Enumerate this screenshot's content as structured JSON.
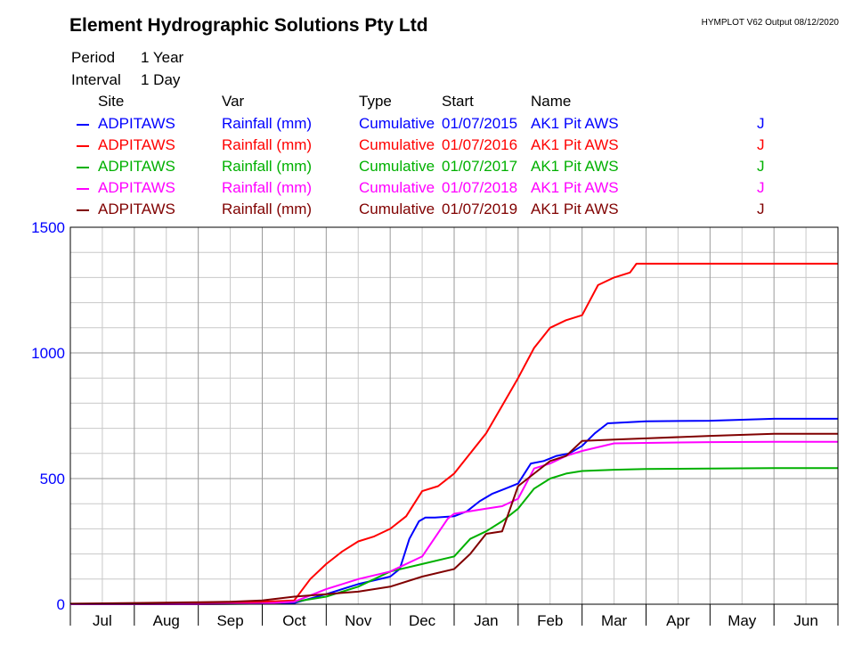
{
  "header": {
    "title": "Element Hydrographic Solutions Pty Ltd",
    "program": "HYMPLOT V62  Output 08/12/2020",
    "period_label": "Period",
    "period_value": "1 Year",
    "interval_label": "Interval",
    "interval_value": "1 Day"
  },
  "legend": {
    "columns": [
      "Site",
      "Var",
      "Type",
      "Start",
      "Name"
    ],
    "entries": [
      {
        "site": "ADPITAWS",
        "var": "Rainfall (mm)",
        "type": "Cumulative",
        "start": "01/07/2015",
        "name": "AK1 Pit AWS",
        "flag": "J",
        "color": "#0000ff"
      },
      {
        "site": "ADPITAWS",
        "var": "Rainfall (mm)",
        "type": "Cumulative",
        "start": "01/07/2016",
        "name": "AK1 Pit AWS",
        "flag": "J",
        "color": "#ff0000"
      },
      {
        "site": "ADPITAWS",
        "var": "Rainfall (mm)",
        "type": "Cumulative",
        "start": "01/07/2017",
        "name": "AK1 Pit AWS",
        "flag": "J",
        "color": "#00b000"
      },
      {
        "site": "ADPITAWS",
        "var": "Rainfall (mm)",
        "type": "Cumulative",
        "start": "01/07/2018",
        "name": "AK1 Pit AWS",
        "flag": "J",
        "color": "#ff00ff"
      },
      {
        "site": "ADPITAWS",
        "var": "Rainfall (mm)",
        "type": "Cumulative",
        "start": "01/07/2019",
        "name": "AK1 Pit AWS",
        "flag": "J",
        "color": "#800000"
      }
    ]
  },
  "chart_data": {
    "type": "line",
    "title": "",
    "xlabel": "",
    "ylabel": "",
    "x_unit": "month of water year (0 = 1 Jul, 12 = 30 Jun)",
    "xlim": [
      0,
      12
    ],
    "ylim": [
      0,
      1500
    ],
    "yticks": [
      0,
      500,
      1000,
      1500
    ],
    "x_tick_labels": [
      "Jul",
      "Aug",
      "Sep",
      "Oct",
      "Nov",
      "Dec",
      "Jan",
      "Feb",
      "Mar",
      "Apr",
      "May",
      "Jun"
    ],
    "grid": true,
    "axis_color": "#0000ff",
    "series": [
      {
        "name": "ADPITAWS Rainfall (mm) Cumulative 01/07/2015",
        "color": "#0000ff",
        "x": [
          0,
          1.0,
          2.0,
          3.5,
          4.0,
          4.5,
          5.0,
          5.15,
          5.3,
          5.45,
          5.55,
          5.7,
          6.0,
          6.2,
          6.4,
          6.6,
          6.8,
          7.0,
          7.2,
          7.4,
          7.6,
          7.8,
          8.0,
          8.2,
          8.4,
          9.0,
          10.0,
          11.0,
          12.0
        ],
        "y": [
          0,
          0,
          2,
          5,
          40,
          80,
          110,
          140,
          260,
          330,
          345,
          345,
          350,
          370,
          410,
          440,
          460,
          480,
          560,
          570,
          590,
          600,
          630,
          680,
          720,
          728,
          730,
          738,
          738
        ]
      },
      {
        "name": "ADPITAWS Rainfall (mm) Cumulative 01/07/2016",
        "color": "#ff0000",
        "x": [
          0,
          1.0,
          2.0,
          3.0,
          3.5,
          3.75,
          4.0,
          4.25,
          4.5,
          4.75,
          5.0,
          5.25,
          5.5,
          5.75,
          6.0,
          6.25,
          6.5,
          6.75,
          7.0,
          7.25,
          7.5,
          7.75,
          8.0,
          8.25,
          8.5,
          8.75,
          8.85,
          9.0,
          10.0,
          11.0,
          12.0
        ],
        "y": [
          0,
          0,
          5,
          10,
          15,
          100,
          160,
          210,
          250,
          270,
          300,
          350,
          450,
          470,
          520,
          600,
          680,
          790,
          900,
          1020,
          1100,
          1130,
          1150,
          1270,
          1300,
          1320,
          1355,
          1355,
          1355,
          1355,
          1355
        ]
      },
      {
        "name": "ADPITAWS Rainfall (mm) Cumulative 01/07/2017",
        "color": "#00b000",
        "x": [
          0,
          1.0,
          2.0,
          3.0,
          3.5,
          4.0,
          4.5,
          5.0,
          5.5,
          6.0,
          6.25,
          6.5,
          6.75,
          7.0,
          7.25,
          7.5,
          7.75,
          8.0,
          8.5,
          9.0,
          10.0,
          11.0,
          12.0
        ],
        "y": [
          0,
          0,
          0,
          2,
          10,
          30,
          70,
          130,
          160,
          190,
          260,
          290,
          330,
          380,
          460,
          500,
          520,
          530,
          535,
          538,
          540,
          542,
          542
        ]
      },
      {
        "name": "ADPITAWS Rainfall (mm) Cumulative 01/07/2018",
        "color": "#ff00ff",
        "x": [
          0,
          1.0,
          2.0,
          3.0,
          3.5,
          4.0,
          4.5,
          5.0,
          5.5,
          5.9,
          6.0,
          6.5,
          6.75,
          7.0,
          7.25,
          7.5,
          7.75,
          8.0,
          8.5,
          9.0,
          10.0,
          11.0,
          12.0
        ],
        "y": [
          0,
          0,
          0,
          3,
          10,
          60,
          100,
          130,
          190,
          340,
          360,
          380,
          390,
          420,
          540,
          560,
          590,
          610,
          640,
          642,
          645,
          646,
          646
        ]
      },
      {
        "name": "ADPITAWS Rainfall (mm) Cumulative 01/07/2019",
        "color": "#800000",
        "x": [
          0,
          1.0,
          2.0,
          2.5,
          3.0,
          3.5,
          4.0,
          4.5,
          5.0,
          5.5,
          6.0,
          6.25,
          6.5,
          6.75,
          7.0,
          7.25,
          7.5,
          7.75,
          8.0,
          8.5,
          9.0,
          10.0,
          11.0,
          12.0
        ],
        "y": [
          2,
          5,
          8,
          10,
          15,
          30,
          40,
          50,
          70,
          110,
          140,
          200,
          280,
          290,
          470,
          520,
          570,
          590,
          650,
          655,
          660,
          670,
          678,
          678
        ]
      }
    ]
  }
}
